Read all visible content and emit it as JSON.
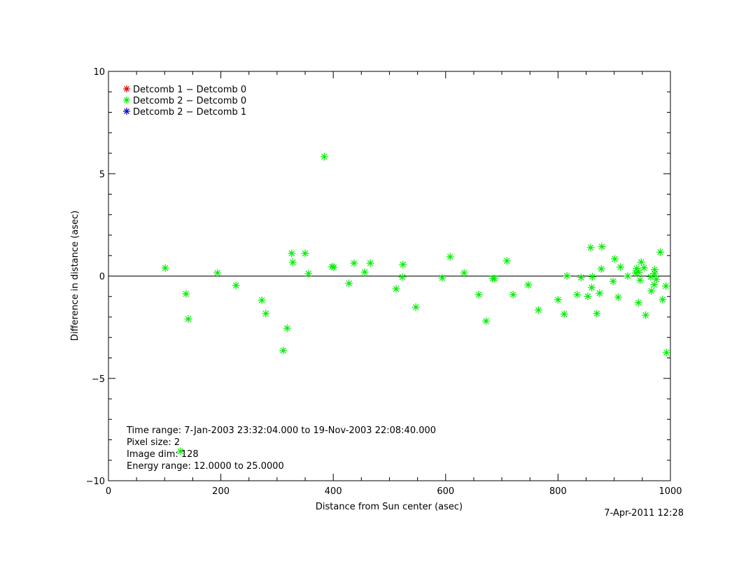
{
  "chart_data": {
    "type": "scatter",
    "title": "",
    "xlabel": "Distance from Sun center (asec)",
    "ylabel": "Difference in distance (asec)",
    "xlim": [
      0,
      1000
    ],
    "ylim": [
      -10,
      10
    ],
    "xticks": [
      "0",
      "200",
      "400",
      "600",
      "800",
      "1000"
    ],
    "yticks": [
      "−10",
      "−5",
      "0",
      "5",
      "10"
    ],
    "xtick_values": [
      0,
      200,
      400,
      600,
      800,
      1000
    ],
    "ytick_values": [
      -10,
      -5,
      0,
      5,
      10
    ],
    "grid": false,
    "zero_line": true,
    "legend_position": "top-left",
    "series": [
      {
        "name": "Detcomb 1 − Detcomb 0",
        "color": "#e00000",
        "points": []
      },
      {
        "name": "Detcomb 2 − Detcomb 0",
        "color": "#00ee00",
        "points": [
          [
            101,
            0.39
          ],
          [
            138,
            -0.87
          ],
          [
            142,
            -2.1
          ],
          [
            194,
            0.15
          ],
          [
            227,
            -0.46
          ],
          [
            273,
            -1.18
          ],
          [
            280,
            -1.83
          ],
          [
            311,
            -3.64
          ],
          [
            318,
            -2.55
          ],
          [
            326,
            1.11
          ],
          [
            328,
            0.67
          ],
          [
            350,
            1.11
          ],
          [
            356,
            0.12
          ],
          [
            384,
            5.83
          ],
          [
            398,
            0.46
          ],
          [
            401,
            0.43
          ],
          [
            428,
            -0.36
          ],
          [
            437,
            0.63
          ],
          [
            456,
            0.19
          ],
          [
            466,
            0.63
          ],
          [
            512,
            -0.63
          ],
          [
            524,
            0.56
          ],
          [
            523,
            -0.05
          ],
          [
            547,
            -1.52
          ],
          [
            594,
            -0.09
          ],
          [
            608,
            0.94
          ],
          [
            633,
            0.15
          ],
          [
            659,
            -0.91
          ],
          [
            672,
            -2.2
          ],
          [
            684,
            -0.12
          ],
          [
            687,
            -0.12
          ],
          [
            709,
            0.74
          ],
          [
            720,
            -0.91
          ],
          [
            747,
            -0.43
          ],
          [
            765,
            -1.66
          ],
          [
            128,
            -8.56
          ],
          [
            800,
            -1.16
          ],
          [
            811,
            -1.86
          ],
          [
            816,
            0.01
          ],
          [
            834,
            -0.91
          ],
          [
            841,
            -0.07
          ],
          [
            853,
            -0.99
          ],
          [
            858,
            1.39
          ],
          [
            860,
            -0.56
          ],
          [
            861,
            -0.03
          ],
          [
            869,
            -1.83
          ],
          [
            874,
            -0.84
          ],
          [
            877,
            0.35
          ],
          [
            878,
            1.44
          ],
          [
            898,
            -0.26
          ],
          [
            901,
            0.84
          ],
          [
            907,
            -1.03
          ],
          [
            911,
            0.44
          ],
          [
            924,
            0.0
          ],
          [
            938,
            0.15
          ],
          [
            940,
            0.37
          ],
          [
            943,
            -1.3
          ],
          [
            944,
            0.18
          ],
          [
            946,
            -0.2
          ],
          [
            948,
            0.68
          ],
          [
            953,
            0.4
          ],
          [
            956,
            -1.91
          ],
          [
            965,
            -0.04
          ],
          [
            966,
            -0.73
          ],
          [
            971,
            -0.42
          ],
          [
            972,
            0.12
          ],
          [
            972,
            0.31
          ],
          [
            975,
            -0.16
          ],
          [
            982,
            1.17
          ],
          [
            986,
            -1.15
          ],
          [
            992,
            -0.49
          ],
          [
            993,
            -3.74
          ]
        ]
      },
      {
        "name": "Detcomb 2 − Detcomb 1",
        "color": "#0000cc",
        "points": []
      }
    ],
    "annotations": [
      "Time range:  7-Jan-2003 23:32:04.000 to 19-Nov-2003 22:08:40.000",
      "Pixel size: 2",
      "Image dim: 128",
      "Energy range: 12.0000 to 25.0000"
    ],
    "timestamp": "7-Apr-2011 12:28"
  }
}
